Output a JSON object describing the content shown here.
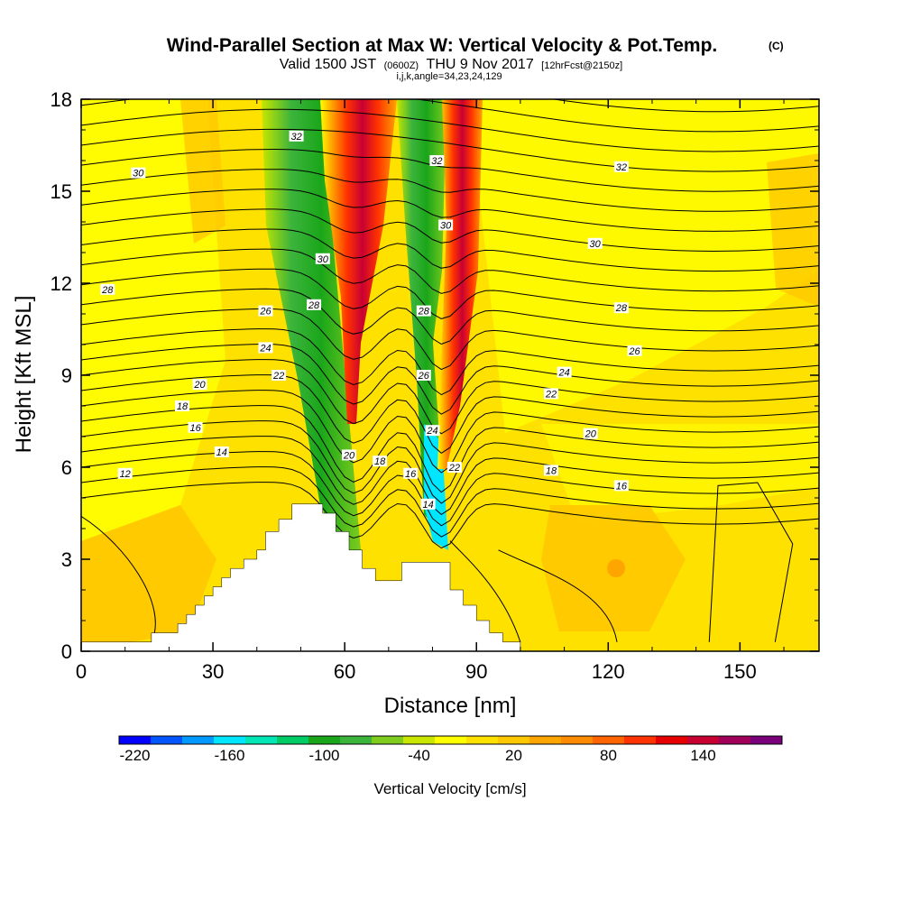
{
  "chart_data": {
    "type": "heatmap",
    "title": "Wind-Parallel Section at Max W: Vertical Velocity & Pot.Temp.",
    "copyright": "(C)",
    "subtitle_main_a": "Valid 1500 JST",
    "subtitle_small_a": "(0600Z)",
    "subtitle_main_b": "THU 9 Nov 2017",
    "subtitle_small_b": "[12hrFcst@2150z]",
    "subtitle_line3": "i,j,k,angle=34,23,24,129",
    "xlabel": "Distance [nm]",
    "ylabel": "Height [Kft MSL]",
    "xlim": [
      0,
      168
    ],
    "ylim": [
      0,
      18
    ],
    "x_ticks": [
      "0",
      "30",
      "60",
      "90",
      "120",
      "150"
    ],
    "y_ticks": [
      "0",
      "3",
      "6",
      "9",
      "12",
      "15",
      "18"
    ],
    "colorbar": {
      "label": "Vertical Velocity [cm/s]",
      "ticks": [
        "-220",
        "-160",
        "-100",
        "-40",
        "20",
        "80",
        "140"
      ],
      "colors": [
        "#0000ff",
        "#0055ff",
        "#0099ff",
        "#00e6ff",
        "#00e6b4",
        "#00cc66",
        "#1aa61a",
        "#3cb43c",
        "#7dcc1e",
        "#c8e600",
        "#ffff00",
        "#ffe100",
        "#ffc800",
        "#ffa500",
        "#ff8c00",
        "#ff6400",
        "#ff3200",
        "#e60000",
        "#c80032",
        "#a0005a",
        "#780078"
      ]
    },
    "contour_labels": [
      {
        "text": "32",
        "x": 49,
        "y": 16.8
      },
      {
        "text": "32",
        "x": 81,
        "y": 16.0
      },
      {
        "text": "32",
        "x": 123,
        "y": 15.8
      },
      {
        "text": "30",
        "x": 13,
        "y": 15.6
      },
      {
        "text": "30",
        "x": 55,
        "y": 12.8
      },
      {
        "text": "30",
        "x": 83,
        "y": 13.9
      },
      {
        "text": "30",
        "x": 117,
        "y": 13.3
      },
      {
        "text": "28",
        "x": 6,
        "y": 11.8
      },
      {
        "text": "28",
        "x": 53,
        "y": 11.3
      },
      {
        "text": "28",
        "x": 78,
        "y": 11.1
      },
      {
        "text": "28",
        "x": 123,
        "y": 11.2
      },
      {
        "text": "26",
        "x": 42,
        "y": 11.1
      },
      {
        "text": "26",
        "x": 78,
        "y": 9.0
      },
      {
        "text": "26",
        "x": 126,
        "y": 9.8
      },
      {
        "text": "24",
        "x": 42,
        "y": 9.9
      },
      {
        "text": "24",
        "x": 80,
        "y": 7.2
      },
      {
        "text": "24",
        "x": 110,
        "y": 9.1
      },
      {
        "text": "22",
        "x": 45,
        "y": 9.0
      },
      {
        "text": "22",
        "x": 85,
        "y": 6.0
      },
      {
        "text": "22",
        "x": 107,
        "y": 8.4
      },
      {
        "text": "20",
        "x": 27,
        "y": 8.7
      },
      {
        "text": "20",
        "x": 61,
        "y": 6.4
      },
      {
        "text": "20",
        "x": 116,
        "y": 7.1
      },
      {
        "text": "18",
        "x": 23,
        "y": 8.0
      },
      {
        "text": "18",
        "x": 68,
        "y": 6.2
      },
      {
        "text": "18",
        "x": 107,
        "y": 5.9
      },
      {
        "text": "16",
        "x": 26,
        "y": 7.3
      },
      {
        "text": "16",
        "x": 75,
        "y": 5.8
      },
      {
        "text": "16",
        "x": 123,
        "y": 5.4
      },
      {
        "text": "14",
        "x": 32,
        "y": 6.5
      },
      {
        "text": "14",
        "x": 79,
        "y": 4.8
      },
      {
        "text": "12",
        "x": 10,
        "y": 5.8
      }
    ],
    "terrain": [
      [
        0,
        0.3
      ],
      [
        16,
        0.3
      ],
      [
        16,
        0.6
      ],
      [
        19,
        0.6
      ],
      [
        19,
        0.6
      ],
      [
        22,
        0.6
      ],
      [
        22,
        0.9
      ],
      [
        24,
        0.9
      ],
      [
        24,
        1.2
      ],
      [
        26,
        1.2
      ],
      [
        26,
        1.5
      ],
      [
        28,
        1.5
      ],
      [
        28,
        1.8
      ],
      [
        30,
        1.8
      ],
      [
        30,
        2.1
      ],
      [
        32,
        2.1
      ],
      [
        32,
        2.4
      ],
      [
        34,
        2.4
      ],
      [
        34,
        2.7
      ],
      [
        37,
        2.7
      ],
      [
        37,
        3.0
      ],
      [
        40,
        3.0
      ],
      [
        40,
        3.3
      ],
      [
        42,
        3.3
      ],
      [
        42,
        3.9
      ],
      [
        45,
        3.9
      ],
      [
        45,
        4.3
      ],
      [
        48,
        4.3
      ],
      [
        48,
        4.8
      ],
      [
        55,
        4.8
      ],
      [
        55,
        4.5
      ],
      [
        58,
        4.5
      ],
      [
        58,
        3.9
      ],
      [
        61,
        3.9
      ],
      [
        61,
        3.3
      ],
      [
        64,
        3.3
      ],
      [
        64,
        2.7
      ],
      [
        67,
        2.7
      ],
      [
        67,
        2.3
      ],
      [
        73,
        2.3
      ],
      [
        73,
        2.9
      ],
      [
        84,
        2.9
      ],
      [
        84,
        2.0
      ],
      [
        87,
        2.0
      ],
      [
        87,
        1.5
      ],
      [
        90,
        1.5
      ],
      [
        90,
        1.0
      ],
      [
        93,
        1.0
      ],
      [
        93,
        0.6
      ],
      [
        96,
        0.6
      ],
      [
        96,
        0.3
      ],
      [
        100,
        0.3
      ],
      [
        100,
        0
      ],
      [
        0,
        0
      ]
    ]
  }
}
